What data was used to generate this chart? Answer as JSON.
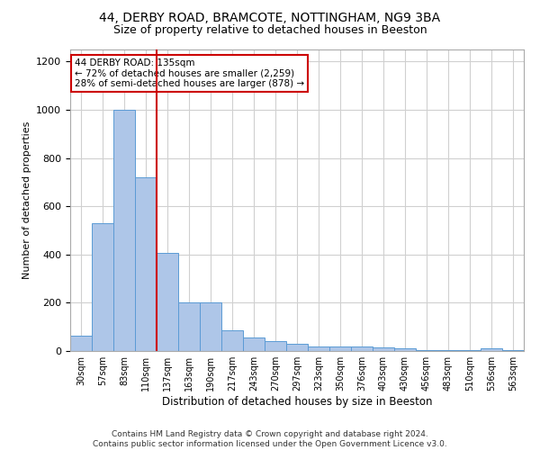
{
  "title_line1": "44, DERBY ROAD, BRAMCOTE, NOTTINGHAM, NG9 3BA",
  "title_line2": "Size of property relative to detached houses in Beeston",
  "xlabel": "Distribution of detached houses by size in Beeston",
  "ylabel": "Number of detached properties",
  "footer_line1": "Contains HM Land Registry data © Crown copyright and database right 2024.",
  "footer_line2": "Contains public sector information licensed under the Open Government Licence v3.0.",
  "bar_labels": [
    "30sqm",
    "57sqm",
    "83sqm",
    "110sqm",
    "137sqm",
    "163sqm",
    "190sqm",
    "217sqm",
    "243sqm",
    "270sqm",
    "297sqm",
    "323sqm",
    "350sqm",
    "376sqm",
    "403sqm",
    "430sqm",
    "456sqm",
    "483sqm",
    "510sqm",
    "536sqm",
    "563sqm"
  ],
  "bar_values": [
    65,
    530,
    1000,
    720,
    405,
    200,
    200,
    85,
    55,
    40,
    30,
    20,
    20,
    20,
    15,
    10,
    5,
    5,
    5,
    10,
    5
  ],
  "bar_color": "#aec6e8",
  "bar_edge_color": "#5b9bd5",
  "annotation_box_text": "44 DERBY ROAD: 135sqm\n← 72% of detached houses are smaller (2,259)\n28% of semi-detached houses are larger (878) →",
  "vline_x": 3.5,
  "vline_color": "#cc0000",
  "annotation_box_color": "#ffffff",
  "annotation_box_edge_color": "#cc0000",
  "ylim": [
    0,
    1250
  ],
  "yticks": [
    0,
    200,
    400,
    600,
    800,
    1000,
    1200
  ],
  "background_color": "#ffffff",
  "grid_color": "#d0d0d0"
}
